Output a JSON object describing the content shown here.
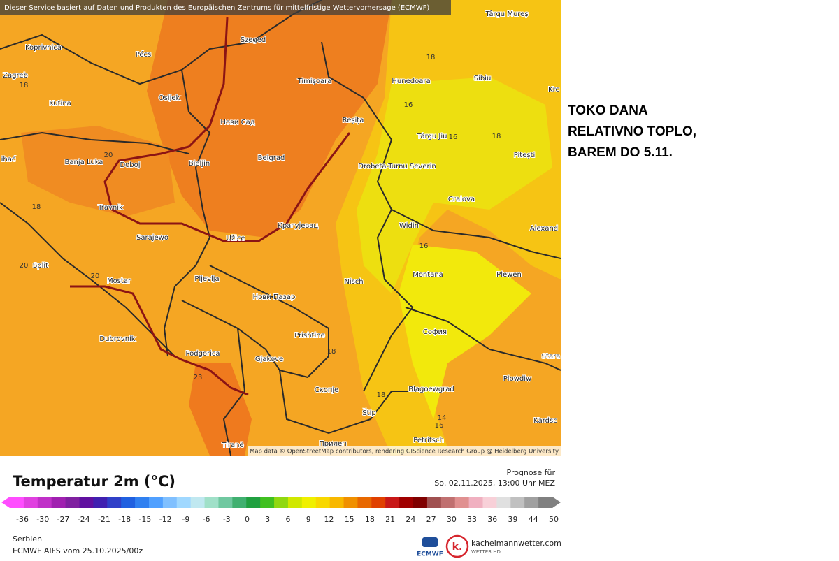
{
  "map": {
    "banner": "Dieser Service basiert auf Daten und Produkten des Europäischen Zentrums für mittelfristige Wettervorhersage (ECMWF)",
    "attribution": "Map data © OpenStreetMap contributors, rendering GIScience Research Group @ Heidelberg University",
    "labels": [
      "Târgu Mureș",
      "Koprivnica",
      "Pécs",
      "Szeged",
      "Zagreb",
      "18",
      "Osijek",
      "Kutina",
      "Timișoara",
      "Hunedoara",
      "Sibiu",
      "18",
      "Нови Сад",
      "Reșița",
      "16",
      "Târgu Jiu",
      "16",
      "18",
      "Pitești",
      "Krc",
      "20",
      "Banja Luka",
      "Doboj",
      "Bieljin",
      "Belgrad",
      "ihać",
      "Drobeta-Turnu Severin",
      "Travnik",
      "18",
      "Craiova",
      "Widin",
      "Alexand",
      "Крагујевац",
      "Sarajewo",
      "Užice",
      "16",
      "20",
      "Split",
      "20",
      "Mostar",
      "Pljevlja",
      "Nisch",
      "Montana",
      "Plewen",
      "Нови Пазар",
      "Prishtine",
      "София",
      "Dubrovnik",
      "Podgorica",
      "18",
      "Gjakove",
      "23",
      "Stara",
      "Plowdiw",
      "Скопје",
      "Blagoewgrad",
      "18",
      "Štip",
      "14",
      "16",
      "Kardsc",
      "Petritsch",
      "Tiranë",
      "Прилеп"
    ]
  },
  "annotation": {
    "lines": [
      "TOKO DANA",
      "RELATIVNO TOPLO,",
      "BAREM DO 5.11."
    ]
  },
  "legend": {
    "title": "Temperatur 2m (°C)",
    "forecast_label": "Prognose für",
    "forecast_time": "So. 02.11.2025, 13:00 Uhr MEZ",
    "ticks": [
      "-36",
      "-30",
      "-27",
      "-24",
      "-21",
      "-18",
      "-15",
      "-12",
      "-9",
      "-6",
      "-3",
      "0",
      "3",
      "6",
      "9",
      "12",
      "15",
      "18",
      "21",
      "24",
      "27",
      "30",
      "33",
      "36",
      "39",
      "44",
      "50"
    ]
  },
  "footer": {
    "region": "Serbien",
    "model": "ECMWF AIFS vom 25.10.2025/00z",
    "ecmwf": "ECMWF",
    "site": "kachelmannwetter.com",
    "site_sub": "WETTER HD",
    "logo": "k."
  }
}
